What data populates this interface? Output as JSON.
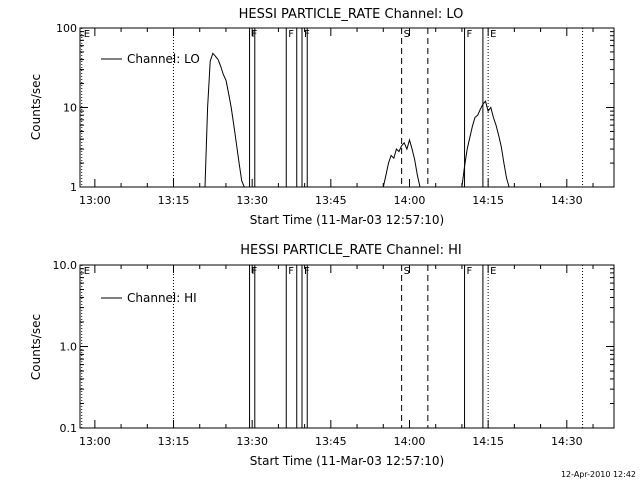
{
  "chart_data": [
    {
      "type": "line",
      "title": "HESSI PARTICLE_RATE Channel: LO",
      "xlabel": "Start Time (11-Mar-03 12:57:10)",
      "ylabel": "Counts/sec",
      "yscale": "log",
      "ylim": [
        1,
        100
      ],
      "xlim": [
        "12:57:10",
        "14:39:00"
      ],
      "x_ticks": [
        "13:00",
        "13:15",
        "13:30",
        "13:45",
        "14:00",
        "14:15",
        "14:30"
      ],
      "y_ticks": [
        "1",
        "10",
        "100"
      ],
      "legend": {
        "placement": "top-left",
        "entries": [
          "Channel: LO"
        ]
      },
      "grid": false,
      "series": [
        {
          "name": "Channel: LO",
          "segments": [
            {
              "x": [
                "13:21:00",
                "13:21:30",
                "13:22:00",
                "13:22:30",
                "13:23:00",
                "13:23:30",
                "13:24:00",
                "13:24:30",
                "13:25:00",
                "13:25:30",
                "13:26:00",
                "13:26:30",
                "13:27:00",
                "13:27:30",
                "13:28:00",
                "13:28:30"
              ],
              "y": [
                1.0,
                10,
                38,
                48,
                44,
                40,
                33,
                26,
                22,
                15,
                10,
                6,
                3.5,
                2,
                1.2,
                1.0
              ]
            },
            {
              "x": [
                "13:55:00",
                "13:55:30",
                "13:56:00",
                "13:56:30",
                "13:57:00",
                "13:57:30",
                "13:58:00",
                "13:58:30",
                "13:59:00",
                "13:59:30",
                "14:00:00",
                "14:00:30",
                "14:01:00",
                "14:01:30",
                "14:02:00"
              ],
              "y": [
                1.0,
                1.4,
                2.0,
                2.5,
                2.3,
                3.0,
                2.8,
                3.3,
                3.6,
                3.0,
                3.9,
                3.0,
                2.2,
                1.4,
                1.0
              ]
            },
            {
              "x": [
                "14:10:00",
                "14:10:30",
                "14:11:00",
                "14:11:30",
                "14:12:00",
                "14:12:30",
                "14:13:00",
                "14:13:30",
                "14:14:00",
                "14:14:30",
                "14:15:00",
                "14:15:30",
                "14:16:00",
                "14:16:30",
                "14:17:00",
                "14:17:30",
                "14:18:00",
                "14:18:30",
                "14:19:00"
              ],
              "y": [
                1.0,
                1.8,
                3.0,
                4.2,
                5.8,
                7.5,
                8.0,
                9.5,
                11,
                12,
                9.0,
                10,
                7.5,
                6.0,
                4.5,
                3.2,
                2.0,
                1.3,
                1.0
              ]
            }
          ]
        }
      ],
      "event_markers": [
        {
          "time": "12:57:30",
          "label": "E",
          "style": "dotted"
        },
        {
          "time": "13:15:00",
          "label": "",
          "style": "dotted"
        },
        {
          "time": "13:29:30",
          "label": "F",
          "style": "solid"
        },
        {
          "time": "13:30:30",
          "label": "",
          "style": "solid"
        },
        {
          "time": "13:36:30",
          "label": "F",
          "style": "solid"
        },
        {
          "time": "13:38:30",
          "label": "",
          "style": "solid"
        },
        {
          "time": "13:39:30",
          "label": "F",
          "style": "solid"
        },
        {
          "time": "13:40:30",
          "label": "",
          "style": "solid"
        },
        {
          "time": "13:58:30",
          "label": "S",
          "style": "dashed"
        },
        {
          "time": "14:03:30",
          "label": "",
          "style": "dashed"
        },
        {
          "time": "14:10:30",
          "label": "F",
          "style": "solid"
        },
        {
          "time": "14:14:00",
          "label": "",
          "style": "solid"
        },
        {
          "time": "14:15:00",
          "label": "E",
          "style": "dotted"
        },
        {
          "time": "14:33:00",
          "label": "",
          "style": "dotted"
        }
      ]
    },
    {
      "type": "line",
      "title": "HESSI PARTICLE_RATE Channel: HI",
      "xlabel": "Start Time (11-Mar-03 12:57:10)",
      "ylabel": "Counts/sec",
      "yscale": "log",
      "ylim": [
        0.1,
        10
      ],
      "xlim": [
        "12:57:10",
        "14:39:00"
      ],
      "x_ticks": [
        "13:00",
        "13:15",
        "13:30",
        "13:45",
        "14:00",
        "14:15",
        "14:30"
      ],
      "y_ticks": [
        "0.1",
        "1.0",
        "10.0"
      ],
      "legend": {
        "placement": "top-left",
        "entries": [
          "Channel: HI"
        ]
      },
      "grid": false,
      "series": [
        {
          "name": "Channel: HI",
          "segments": []
        }
      ],
      "event_markers": [
        {
          "time": "12:57:30",
          "label": "E",
          "style": "dotted"
        },
        {
          "time": "13:15:00",
          "label": "",
          "style": "dotted"
        },
        {
          "time": "13:29:30",
          "label": "F",
          "style": "solid"
        },
        {
          "time": "13:30:30",
          "label": "",
          "style": "solid"
        },
        {
          "time": "13:36:30",
          "label": "F",
          "style": "solid"
        },
        {
          "time": "13:38:30",
          "label": "",
          "style": "solid"
        },
        {
          "time": "13:39:30",
          "label": "F",
          "style": "solid"
        },
        {
          "time": "13:40:30",
          "label": "",
          "style": "solid"
        },
        {
          "time": "13:58:30",
          "label": "S",
          "style": "dashed"
        },
        {
          "time": "14:03:30",
          "label": "",
          "style": "dashed"
        },
        {
          "time": "14:10:30",
          "label": "F",
          "style": "solid"
        },
        {
          "time": "14:14:00",
          "label": "",
          "style": "solid"
        },
        {
          "time": "14:15:00",
          "label": "E",
          "style": "dotted"
        },
        {
          "time": "14:33:00",
          "label": "",
          "style": "dotted"
        }
      ]
    }
  ],
  "footer": {
    "timestamp": "12-Apr-2010 12:42"
  }
}
